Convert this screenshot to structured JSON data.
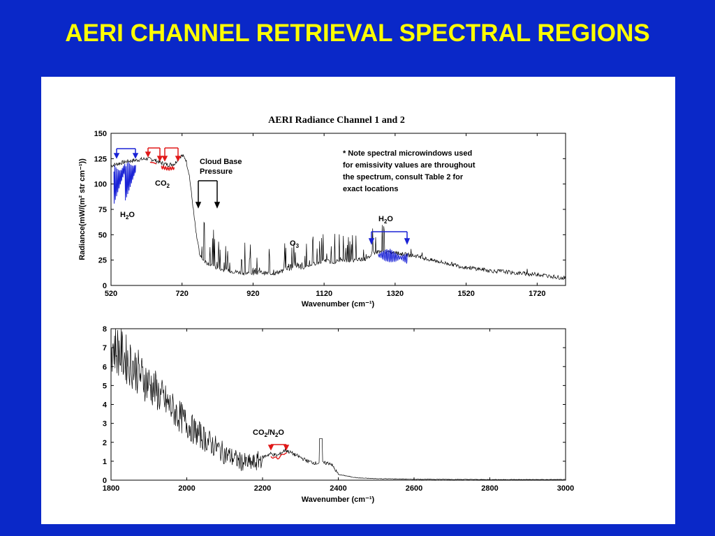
{
  "slide": {
    "title": "AERI CHANNEL RETRIEVAL SPECTRAL REGIONS"
  },
  "colors": {
    "background": "#0a28c8",
    "title": "#ffff00",
    "panel": "#ffffff",
    "h2o": "#1a22d6",
    "co2": "#e01818",
    "spectrum": "#000000"
  },
  "chart_data": [
    {
      "type": "line",
      "title": "AERI Radiance Channel 1 and 2",
      "xlabel": "Wavenumber (cm⁻¹)",
      "ylabel": "Radiance(mW/(m² str cm⁻¹))",
      "xlim": [
        520,
        1800
      ],
      "ylim": [
        0,
        150
      ],
      "xticks": [
        520,
        720,
        920,
        1120,
        1320,
        1520,
        1720
      ],
      "yticks": [
        0,
        25,
        50,
        75,
        100,
        125,
        150
      ],
      "grid": false,
      "series": [
        {
          "x": [
            520,
            540,
            560,
            580,
            600,
            620,
            640,
            660,
            680,
            700,
            710,
            720,
            730,
            740,
            750,
            760,
            770,
            780,
            800,
            820,
            840,
            860,
            880,
            900,
            920,
            940,
            960,
            980,
            1000,
            1020,
            1040,
            1060,
            1080,
            1100,
            1120,
            1140,
            1160,
            1180,
            1200,
            1220,
            1240,
            1260,
            1280,
            1300,
            1320,
            1340,
            1360,
            1380,
            1400,
            1420,
            1440,
            1460,
            1480,
            1500,
            1520,
            1540,
            1560,
            1580,
            1600,
            1620,
            1640,
            1660,
            1680,
            1700,
            1720,
            1740,
            1760,
            1780,
            1800
          ],
          "y": [
            118,
            120,
            122,
            123,
            124,
            125,
            124,
            121,
            119,
            120,
            126,
            128,
            125,
            110,
            80,
            50,
            30,
            24,
            20,
            17,
            15,
            14,
            13,
            12,
            12,
            13,
            12,
            12,
            14,
            18,
            21,
            18,
            20,
            22,
            25,
            23,
            24,
            25,
            24,
            26,
            26,
            32,
            34,
            33,
            32,
            31,
            30,
            29,
            27,
            25,
            24,
            22,
            21,
            19,
            18,
            17,
            16,
            15,
            14,
            14,
            13,
            12,
            12,
            11,
            11,
            10,
            9,
            8,
            7
          ]
        }
      ],
      "annotations": {
        "h2o_left": {
          "label": "H",
          "sub": "2",
          "label2": "O"
        },
        "co2": {
          "label": "CO",
          "sub": "2"
        },
        "cloud_base_line1": "Cloud Base",
        "cloud_base_line2": "Pressure",
        "o3": {
          "label": "O",
          "sub": "3"
        },
        "h2o_right": {
          "label": "H",
          "sub": "2",
          "label2": "O"
        },
        "note": [
          "*  Note spectral microwindows used",
          "for emissivity values are throughout",
          "the spectrum, consult Table 2 for",
          "exact locations"
        ]
      }
    },
    {
      "type": "line",
      "title": "",
      "xlabel": "Wavenumber (cm⁻¹)",
      "ylabel": "",
      "xlim": [
        1800,
        3000
      ],
      "ylim": [
        0,
        8
      ],
      "xticks": [
        1800,
        2000,
        2200,
        2400,
        2600,
        2800,
        3000
      ],
      "yticks": [
        0,
        1,
        2,
        3,
        4,
        5,
        6,
        7,
        8
      ],
      "grid": false,
      "series": [
        {
          "x": [
            1800,
            1820,
            1840,
            1860,
            1880,
            1900,
            1920,
            1940,
            1960,
            1980,
            2000,
            2020,
            2040,
            2060,
            2080,
            2100,
            2120,
            2140,
            2160,
            2180,
            2200,
            2220,
            2240,
            2260,
            2280,
            2300,
            2320,
            2340,
            2360,
            2380,
            2400,
            2450,
            2500,
            2600,
            2700,
            2800,
            2900,
            3000
          ],
          "y": [
            7.2,
            6.8,
            6.4,
            6.0,
            5.5,
            5.1,
            4.7,
            4.2,
            3.8,
            3.4,
            3.0,
            2.6,
            2.3,
            2.0,
            1.7,
            1.4,
            1.2,
            1.0,
            0.9,
            0.9,
            1.2,
            1.4,
            1.3,
            1.6,
            1.4,
            1.2,
            1.0,
            0.9,
            0.9,
            0.9,
            0.3,
            0.12,
            0.08,
            0.05,
            0.04,
            0.03,
            0.03,
            0.03
          ]
        }
      ],
      "annotations": {
        "co2_n2o": {
          "a": "CO",
          "sub1": "2",
          "b": "/N",
          "sub2": "2",
          "c": "O"
        }
      }
    }
  ]
}
